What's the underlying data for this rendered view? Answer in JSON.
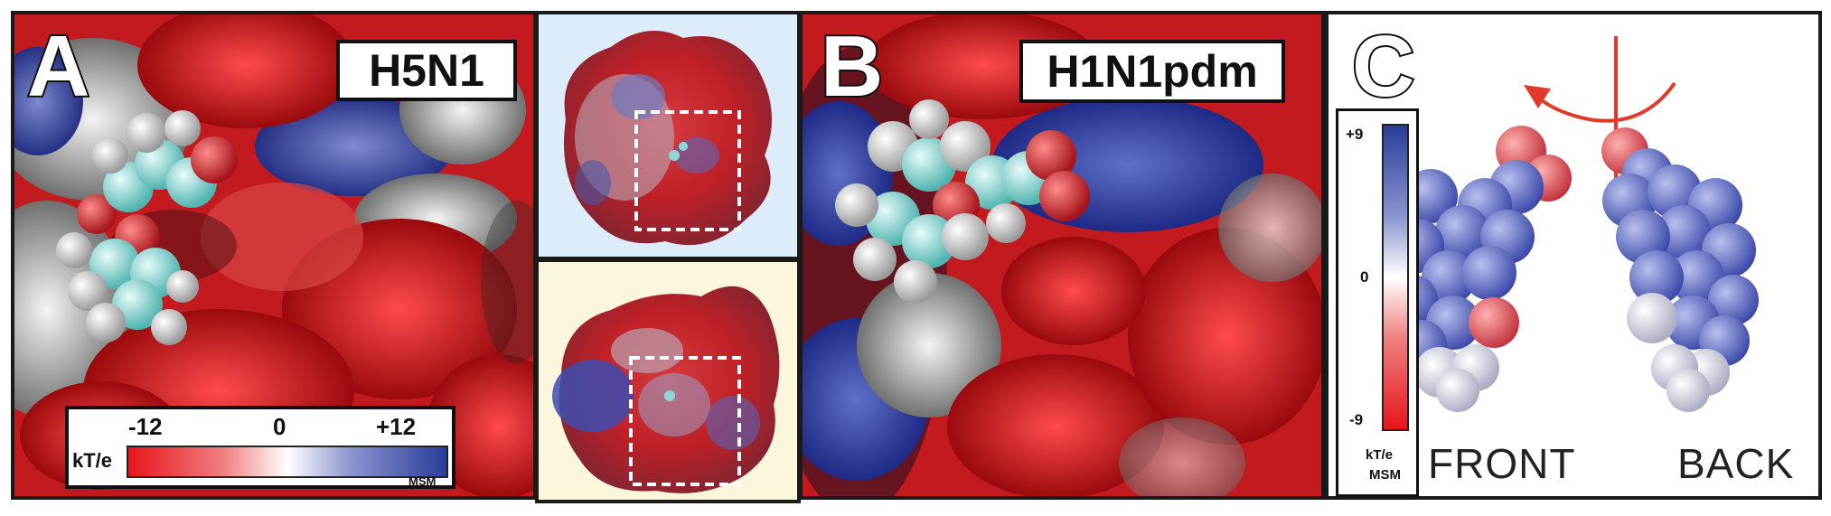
{
  "panels": {
    "a": {
      "letter": "A",
      "label": "H5N1"
    },
    "b": {
      "letter": "B",
      "label": "H1N1pdm"
    },
    "c": {
      "letter": "C",
      "front": "FRONT",
      "back": "BACK"
    }
  },
  "colorbar_a": {
    "min_label": "-12",
    "mid_label": "0",
    "max_label": "+12",
    "unit": "kT/e",
    "source": "MSM"
  },
  "colorbar_c": {
    "max_label": "+9",
    "mid_label": "0",
    "min_label": "-9",
    "unit": "kT/e",
    "source": "MSM"
  },
  "colors": {
    "negative": "#e8141c",
    "neutral": "#ffffff",
    "positive": "#2a3d9a",
    "ligand_carbon": "#8fd6d2",
    "ligand_oxygen": "#d9363b",
    "panel_a_inset_bg": "#dcecf8",
    "panel_b_inset_bg": "#fbf6dc",
    "arrow": "#e23a2a"
  }
}
